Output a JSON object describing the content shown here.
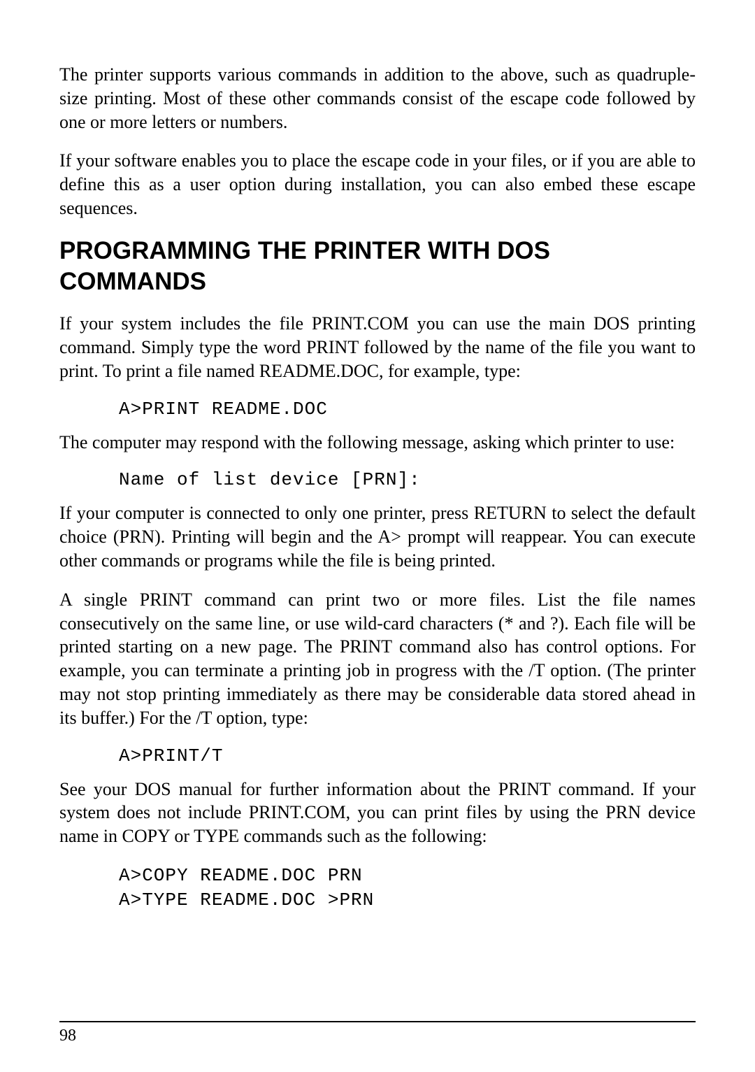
{
  "paragraphs": {
    "p1": "The printer supports various commands in addition to the above, such as quadruple-size printing. Most of these other commands consist of the escape code followed by one or more letters or numbers.",
    "p2": "If your software enables you to place the escape code in your files, or if you are able to define this as a user option during installation, you can also embed these escape sequences.",
    "p3": "If your system includes the file PRINT.COM you can use the main DOS printing command. Simply type the word PRINT followed by the name of the file you want to print. To print a file named README.DOC, for example, type:",
    "p4": "The computer may respond with the following message, asking which printer to use:",
    "p5": "If your computer is connected to only one printer, press RETURN to select the default choice (PRN). Printing will begin and the A> prompt will reappear. You can execute other commands or programs while the file is being printed.",
    "p6": "A single PRINT command can print two or more files. List the file names consecutively on the same line, or use wild-card characters (* and ?). Each file will be printed starting on a new page. The PRINT command also has control options. For example, you can terminate a printing job in progress with the /T option. (The printer may not stop printing immediately as there may be considerable data stored ahead in its buffer.) For the /T option, type:",
    "p7": "See your DOS manual for further information about the PRINT command. If your system does not include PRINT.COM, you can print files by using the PRN device name in COPY or TYPE commands such as the following:"
  },
  "heading": "PROGRAMMING THE PRINTER WITH DOS COMMANDS",
  "code": {
    "c1": "A>PRINT README.DOC",
    "c2": "Name of list device [PRN]:",
    "c3": "A>PRINT/T",
    "c4": "A>COPY README.DOC PRN\nA>TYPE README.DOC >PRN"
  },
  "page_number": "98"
}
